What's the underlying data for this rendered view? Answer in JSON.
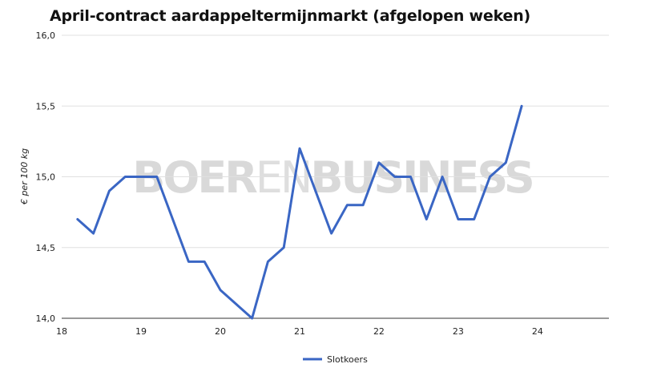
{
  "title": "April-contract aardappeltermijnmarkt (afgelopen weken)",
  "watermark": {
    "bold1": "BOER",
    "thin": "EN",
    "bold2": "BUSINESS"
  },
  "colors": {
    "series": "#3a66c4",
    "grid": "#e0e0e0",
    "axis": "#333333",
    "watermark": "#d9d9d9"
  },
  "chart_data": {
    "type": "line",
    "title": "April-contract aardappeltermijnmarkt (afgelopen weken)",
    "xlabel": "",
    "ylabel": "€ per 100 kg",
    "xlim": [
      18,
      24.9
    ],
    "ylim": [
      14.0,
      16.0
    ],
    "x_ticks": [
      "18",
      "19",
      "20",
      "21",
      "22",
      "23",
      "24"
    ],
    "y_ticks": [
      "14,0",
      "14,5",
      "15,0",
      "15,5",
      "16,0"
    ],
    "grid": true,
    "legend_position": "bottom",
    "series": [
      {
        "name": "Slotkoers",
        "x": [
          18.2,
          18.4,
          18.6,
          18.8,
          19.0,
          19.2,
          19.4,
          19.6,
          19.8,
          20.0,
          20.2,
          20.4,
          20.6,
          20.8,
          21.0,
          21.2,
          21.4,
          21.6,
          21.8,
          22.0,
          22.2,
          22.4,
          22.6,
          22.8,
          23.0,
          23.2,
          23.4,
          23.6,
          23.8
        ],
        "values": [
          14.7,
          14.6,
          14.9,
          15.0,
          15.0,
          15.0,
          14.7,
          14.4,
          14.4,
          14.2,
          14.1,
          14.0,
          14.4,
          14.5,
          15.2,
          14.9,
          14.6,
          14.8,
          14.8,
          15.1,
          15.0,
          15.0,
          14.7,
          15.0,
          14.7,
          14.7,
          15.0,
          15.1,
          15.5
        ]
      }
    ]
  }
}
